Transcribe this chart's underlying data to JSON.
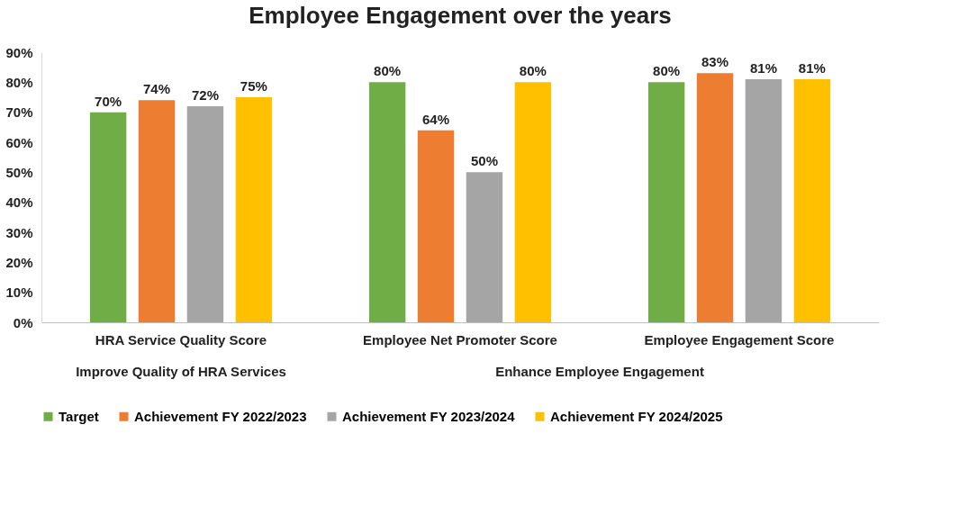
{
  "chart_data": {
    "type": "bar",
    "title": "Employee Engagement over the years",
    "categories": [
      "HRA Service Quality Score",
      "Employee Net Promoter Score",
      "Employee Engagement Score"
    ],
    "annotations": [
      "Improve Quality of HRA Services",
      "Enhance Employee Engagement"
    ],
    "series": [
      {
        "name": "Target",
        "color": "#70ad47",
        "values": [
          70,
          80,
          80
        ],
        "value_labels": [
          "70%",
          "80%",
          "80%"
        ]
      },
      {
        "name": "Achievement FY 2022/2023",
        "color": "#ed7d31",
        "values": [
          74,
          64,
          83
        ],
        "value_labels": [
          "74%",
          "64%",
          "83%"
        ]
      },
      {
        "name": "Achievement FY 2023/2024",
        "color": "#a5a5a5",
        "values": [
          72,
          50,
          81
        ],
        "value_labels": [
          "72%",
          "50%",
          "81%"
        ]
      },
      {
        "name": "Achievement FY 2024/2025",
        "color": "#ffc000",
        "values": [
          75,
          80,
          81
        ],
        "value_labels": [
          "75%",
          "80%",
          "81%"
        ]
      }
    ],
    "ylim": [
      0,
      90
    ],
    "yticks": [
      {
        "value": 0,
        "label": "0%"
      },
      {
        "value": 10,
        "label": "10%"
      },
      {
        "value": 20,
        "label": "20%"
      },
      {
        "value": 30,
        "label": "30%"
      },
      {
        "value": 40,
        "label": "40%"
      },
      {
        "value": 50,
        "label": "50%"
      },
      {
        "value": 60,
        "label": "60%"
      },
      {
        "value": 70,
        "label": "70%"
      },
      {
        "value": 80,
        "label": "80%"
      },
      {
        "value": 90,
        "label": "90%"
      }
    ],
    "grid": false,
    "legend": "bottom"
  }
}
